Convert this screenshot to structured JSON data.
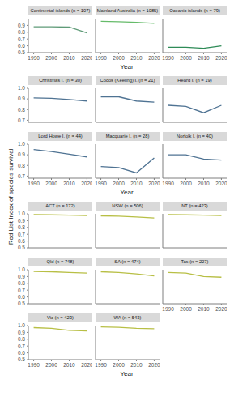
{
  "xlabel": "Year",
  "ylabel": "Red List Index of species survival",
  "chart_data": [
    {
      "type": "line",
      "title": "Continental islands (n = 107)",
      "x": [
        1990,
        2000,
        2010,
        2020
      ],
      "values": [
        0.88,
        0.88,
        0.875,
        0.79
      ],
      "color": "#5f9b78",
      "xlim": [
        1987,
        2023
      ],
      "xticks": [
        1990,
        2000,
        2010,
        2020
      ],
      "ylim": [
        0.5,
        1.0
      ],
      "yticks": [
        0.5,
        0.6,
        0.7,
        0.8,
        0.9
      ],
      "tick_labels": true
    },
    {
      "type": "line",
      "title": "Mainland Australia (n = 1085)",
      "x": [
        1990,
        2000,
        2010,
        2020
      ],
      "values": [
        0.96,
        0.955,
        0.945,
        0.93
      ],
      "color": "#66bb6a",
      "xlim": [
        1987,
        2023
      ],
      "xticks": [
        1990,
        2000,
        2010,
        2020
      ],
      "ylim": [
        0.5,
        1.0
      ],
      "yticks": [
        0.5,
        0.6,
        0.7,
        0.8,
        0.9
      ],
      "tick_labels": "x"
    },
    {
      "type": "line",
      "title": "Oceanic islands (n = 79)",
      "x": [
        1990,
        2000,
        2010,
        2020
      ],
      "values": [
        0.58,
        0.58,
        0.565,
        0.6
      ],
      "color": "#2e8b57",
      "xlim": [
        1987,
        2023
      ],
      "xticks": [
        1990,
        2000,
        2010,
        2020
      ],
      "ylim": [
        0.5,
        1.0
      ],
      "yticks": [
        0.5,
        0.6,
        0.7,
        0.8,
        0.9
      ],
      "tick_labels": "x"
    },
    {
      "type": "line",
      "title": "Christmas I. (n = 30)",
      "x": [
        1990,
        2000,
        2010,
        2020
      ],
      "values": [
        0.91,
        0.905,
        0.895,
        0.88
      ],
      "color": "#4f7393",
      "xlim": [
        1987,
        2023
      ],
      "xticks": [
        1990,
        2000,
        2010,
        2020
      ],
      "ylim": [
        0.68,
        1.0
      ],
      "yticks": [
        0.7,
        0.8,
        0.9,
        {
          "value": 1,
          "label": "1.0"
        }
      ],
      "tick_labels": "y"
    },
    {
      "type": "line",
      "title": "Cocos (Keeling) I. (n = 21)",
      "x": [
        1990,
        2000,
        2010,
        2020
      ],
      "values": [
        0.92,
        0.92,
        0.88,
        0.87
      ],
      "color": "#4f7393",
      "xlim": [
        1987,
        2023
      ],
      "xticks": [
        1990,
        2000,
        2010,
        2020
      ],
      "ylim": [
        0.68,
        1.0
      ],
      "yticks": [
        0.7,
        0.8,
        0.9,
        {
          "value": 1,
          "label": "1.0"
        }
      ],
      "tick_labels": false
    },
    {
      "type": "line",
      "title": "Heard I. (n = 19)",
      "x": [
        1990,
        2000,
        2010,
        2020
      ],
      "values": [
        0.84,
        0.83,
        0.77,
        0.84
      ],
      "color": "#4f7393",
      "xlim": [
        1987,
        2023
      ],
      "xticks": [
        1990,
        2000,
        2010,
        2020
      ],
      "ylim": [
        0.68,
        1.0
      ],
      "yticks": [
        0.7,
        0.8,
        0.9,
        {
          "value": 1,
          "label": "1.0"
        }
      ],
      "tick_labels": false
    },
    {
      "type": "line",
      "title": "Lord Howe I. (n = 44)",
      "x": [
        1990,
        2000,
        2010,
        2020
      ],
      "values": [
        0.95,
        0.93,
        0.905,
        0.88
      ],
      "color": "#4f7393",
      "xlim": [
        1987,
        2023
      ],
      "xticks": [
        1990,
        2000,
        2010,
        2020
      ],
      "ylim": [
        0.68,
        1.0
      ],
      "yticks": [
        0.7,
        0.8,
        0.9,
        {
          "value": 1,
          "label": "1.0"
        }
      ],
      "tick_labels": true
    },
    {
      "type": "line",
      "title": "Macquarie I. (n = 28)",
      "x": [
        1990,
        2000,
        2010,
        2020
      ],
      "values": [
        0.79,
        0.78,
        0.73,
        0.87
      ],
      "color": "#4f7393",
      "xlim": [
        1987,
        2023
      ],
      "xticks": [
        1990,
        2000,
        2010,
        2020
      ],
      "ylim": [
        0.68,
        1.0
      ],
      "yticks": [
        0.7,
        0.8,
        0.9,
        {
          "value": 1,
          "label": "1.0"
        }
      ],
      "tick_labels": "x"
    },
    {
      "type": "line",
      "title": "Norfolk I. (n = 40)",
      "x": [
        1990,
        2000,
        2010,
        2020
      ],
      "values": [
        0.9,
        0.9,
        0.86,
        0.85
      ],
      "color": "#4f7393",
      "xlim": [
        1987,
        2023
      ],
      "xticks": [
        1990,
        2000,
        2010,
        2020
      ],
      "ylim": [
        0.68,
        1.0
      ],
      "yticks": [
        0.7,
        0.8,
        0.9,
        {
          "value": 1,
          "label": "1.0"
        }
      ],
      "tick_labels": "x"
    },
    {
      "type": "line",
      "title": "ACT (n = 172)",
      "x": [
        1990,
        2000,
        2010,
        2020
      ],
      "values": [
        0.99,
        0.985,
        0.98,
        0.975
      ],
      "color": "#b8bf45",
      "xlim": [
        1987,
        2023
      ],
      "xticks": [
        1990,
        2000,
        2010,
        2020
      ],
      "ylim": [
        0.5,
        1.0
      ],
      "yticks": [
        0.5,
        0.6,
        0.7,
        0.8,
        0.9,
        {
          "value": 1,
          "label": "1.0"
        }
      ],
      "tick_labels": "y"
    },
    {
      "type": "line",
      "title": "NSW (n = 506)",
      "x": [
        1990,
        2000,
        2010,
        2020
      ],
      "values": [
        0.97,
        0.965,
        0.955,
        0.94
      ],
      "color": "#b8bf45",
      "xlim": [
        1987,
        2023
      ],
      "xticks": [
        1990,
        2000,
        2010,
        2020
      ],
      "ylim": [
        0.5,
        1.0
      ],
      "yticks": [
        0.5,
        0.6,
        0.7,
        0.8,
        0.9,
        {
          "value": 1,
          "label": "1.0"
        }
      ],
      "tick_labels": false
    },
    {
      "type": "line",
      "title": "NT (n = 423)",
      "x": [
        1990,
        2000,
        2010,
        2020
      ],
      "values": [
        0.99,
        0.985,
        0.98,
        0.975
      ],
      "color": "#b8bf45",
      "xlim": [
        1987,
        2023
      ],
      "xticks": [
        1990,
        2000,
        2010,
        2020
      ],
      "ylim": [
        0.5,
        1.0
      ],
      "yticks": [
        0.5,
        0.6,
        0.7,
        0.8,
        0.9,
        {
          "value": 1,
          "label": "1.0"
        }
      ],
      "tick_labels": false
    },
    {
      "type": "line",
      "title": "Qld (n = 748)",
      "x": [
        1990,
        2000,
        2010,
        2020
      ],
      "values": [
        0.975,
        0.97,
        0.96,
        0.95
      ],
      "color": "#b8bf45",
      "xlim": [
        1987,
        2023
      ],
      "xticks": [
        1990,
        2000,
        2010,
        2020
      ],
      "ylim": [
        0.5,
        1.0
      ],
      "yticks": [
        0.5,
        0.6,
        0.7,
        0.8,
        0.9,
        {
          "value": 1,
          "label": "1.0"
        }
      ],
      "tick_labels": "y"
    },
    {
      "type": "line",
      "title": "SA (n = 474)",
      "x": [
        1990,
        2000,
        2010,
        2020
      ],
      "values": [
        0.97,
        0.96,
        0.94,
        0.91
      ],
      "color": "#b8bf45",
      "xlim": [
        1987,
        2023
      ],
      "xticks": [
        1990,
        2000,
        2010,
        2020
      ],
      "ylim": [
        0.5,
        1.0
      ],
      "yticks": [
        0.5,
        0.6,
        0.7,
        0.8,
        0.9,
        {
          "value": 1,
          "label": "1.0"
        }
      ],
      "tick_labels": false
    },
    {
      "type": "line",
      "title": "Tas (n = 227)",
      "x": [
        1990,
        2000,
        2010,
        2020
      ],
      "values": [
        0.96,
        0.95,
        0.9,
        0.89
      ],
      "color": "#b8bf45",
      "xlim": [
        1987,
        2023
      ],
      "xticks": [
        1990,
        2000,
        2010,
        2020
      ],
      "ylim": [
        0.5,
        1.0
      ],
      "yticks": [
        0.5,
        0.6,
        0.7,
        0.8,
        0.9,
        {
          "value": 1,
          "label": "1.0"
        }
      ],
      "tick_labels": "x"
    },
    {
      "type": "line",
      "title": "Vic (n = 423)",
      "x": [
        1990,
        2000,
        2010,
        2020
      ],
      "values": [
        0.97,
        0.96,
        0.93,
        0.92
      ],
      "color": "#b8bf45",
      "xlim": [
        1987,
        2023
      ],
      "xticks": [
        1990,
        2000,
        2010,
        2020
      ],
      "ylim": [
        0.5,
        1.0
      ],
      "yticks": [
        0.5,
        0.6,
        0.7,
        0.8,
        0.9,
        {
          "value": 1,
          "label": "1.0"
        }
      ],
      "tick_labels": true
    },
    {
      "type": "line",
      "title": "WA (n = 543)",
      "x": [
        1990,
        2000,
        2010,
        2020
      ],
      "values": [
        0.98,
        0.975,
        0.96,
        0.955
      ],
      "color": "#b8bf45",
      "xlim": [
        1987,
        2023
      ],
      "xticks": [
        1990,
        2000,
        2010,
        2020
      ],
      "ylim": [
        0.5,
        1.0
      ],
      "yticks": [
        0.5,
        0.6,
        0.7,
        0.8,
        0.9,
        {
          "value": 1,
          "label": "1.0"
        }
      ],
      "tick_labels": "x"
    }
  ]
}
